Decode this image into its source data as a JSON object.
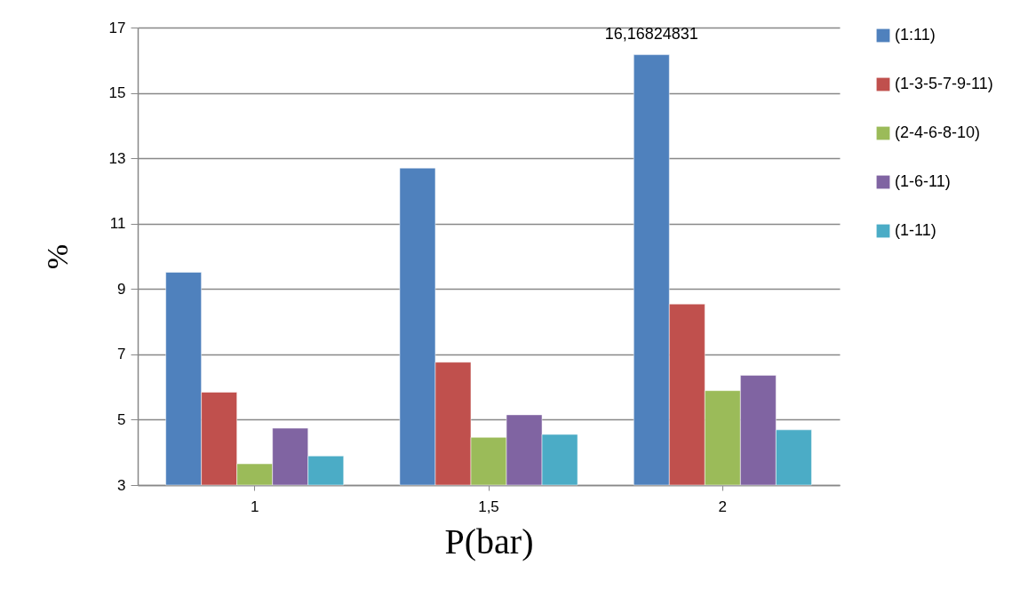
{
  "chart_data": {
    "type": "bar",
    "xlabel": "P(bar)",
    "ylabel": "%",
    "categories": [
      "1",
      "1,5",
      "2"
    ],
    "series": [
      {
        "name": "(1:11)",
        "color": "#4f81bd",
        "values": [
          9.51,
          12.7,
          16.16824831
        ],
        "value_labels": [
          null,
          null,
          "16,16824831"
        ]
      },
      {
        "name": "(1-3-5-7-9-11)",
        "color": "#c0504d",
        "values": [
          5.84,
          6.76,
          8.54
        ]
      },
      {
        "name": "(2-4-6-8-10)",
        "color": "#9bbb59",
        "values": [
          3.65,
          4.46,
          5.89
        ]
      },
      {
        "name": "(1-6-11)",
        "color": "#8064a2",
        "values": [
          4.74,
          5.15,
          6.36
        ]
      },
      {
        "name": "(1-11)",
        "color": "#4bacc6",
        "values": [
          3.89,
          4.55,
          4.69
        ]
      }
    ],
    "ylim": [
      3,
      17
    ],
    "yticks": [
      3,
      5,
      7,
      9,
      11,
      13,
      15,
      17
    ],
    "grid": "y",
    "legend": "right"
  }
}
